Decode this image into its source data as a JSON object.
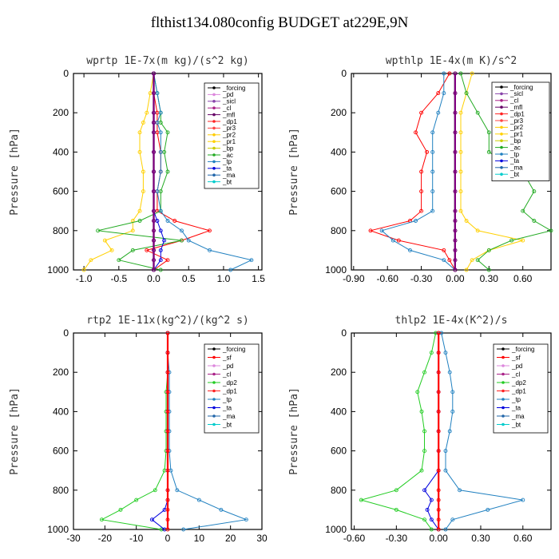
{
  "page": {
    "title": "flthist134.080config  BUDGET at229E,9N"
  },
  "chart_data": [
    {
      "type": "line",
      "title": "wprtp   1E-7x(m kg)/(s^2 kg)",
      "ylabel": "Pressure [hPa]",
      "xlim": [
        -1.15,
        1.55
      ],
      "ylim": [
        1000,
        0
      ],
      "xticks": [
        "-1.0",
        "-0.5",
        "0.0",
        "0.5",
        "1.0",
        "1.5"
      ],
      "xtick_values": [
        -1.0,
        -0.5,
        0.0,
        0.5,
        1.0,
        1.5
      ],
      "yticks": [
        "0",
        "200",
        "400",
        "600",
        "800",
        "1000"
      ],
      "ytick_values": [
        0,
        200,
        400,
        600,
        800,
        1000
      ],
      "legend": [
        "_forcing",
        "_pd",
        "_sicl",
        "_cl",
        "_mfl",
        "_dp1",
        "_pr3",
        "_pr2",
        "_pr1",
        "_bp",
        "_ac",
        "_tp",
        "_ta",
        "_ma",
        "_bt"
      ],
      "legend_position": "top-right",
      "y": [
        0,
        100,
        200,
        250,
        300,
        400,
        500,
        600,
        700,
        750,
        800,
        850,
        900,
        950,
        1000
      ],
      "series": [
        {
          "name": "_forcing",
          "color": "#000000",
          "values": [
            0,
            0,
            0,
            0,
            0,
            0,
            0,
            0,
            0,
            0,
            0,
            0,
            0,
            0,
            0
          ]
        },
        {
          "name": "_cl",
          "color": "#800080",
          "values": [
            0,
            0,
            0,
            0,
            0,
            0,
            0,
            0,
            0,
            0,
            0,
            0,
            0,
            0,
            0
          ]
        },
        {
          "name": "_dp1",
          "color": "#ff0000",
          "values": [
            0,
            0,
            0.05,
            0.05,
            0.05,
            0.1,
            0.1,
            0.05,
            0.05,
            0.3,
            0.8,
            0.4,
            -0.1,
            0.2,
            0
          ]
        },
        {
          "name": "_pr1",
          "color": "#ffd000",
          "values": [
            0,
            -0.05,
            -0.1,
            -0.15,
            -0.2,
            -0.2,
            -0.15,
            -0.15,
            -0.2,
            -0.3,
            -0.3,
            -0.7,
            -0.6,
            -0.9,
            -1.0
          ]
        },
        {
          "name": "_ac",
          "color": "#22aa22",
          "values": [
            0,
            0.05,
            0.1,
            0.1,
            0.2,
            0.15,
            0.2,
            0.1,
            0.1,
            -0.2,
            -0.8,
            0.4,
            -0.3,
            -0.5,
            0.1
          ]
        },
        {
          "name": "_tp",
          "color": "#2080c0",
          "values": [
            0,
            0.05,
            0.1,
            0.05,
            0.1,
            0.1,
            0.1,
            0.05,
            0.1,
            0.2,
            0.4,
            0.5,
            0.8,
            1.4,
            1.1
          ]
        },
        {
          "name": "_ta",
          "color": "#0000dd",
          "values": [
            0,
            0,
            0,
            0,
            0,
            0,
            0,
            0,
            0,
            0.05,
            0.1,
            0.15,
            0.1,
            0.1,
            0
          ]
        }
      ]
    },
    {
      "type": "line",
      "title": "wpthlp   1E-4x(m K)/s^2",
      "ylabel": "Pressure [hPa]",
      "xlim": [
        -0.92,
        0.85
      ],
      "ylim": [
        1000,
        0
      ],
      "xticks": [
        "-0.90",
        "-0.60",
        "-0.30",
        "0.00",
        "0.30",
        "0.60"
      ],
      "xtick_values": [
        -0.9,
        -0.6,
        -0.3,
        0.0,
        0.3,
        0.6
      ],
      "yticks": [
        "0",
        "200",
        "400",
        "600",
        "800",
        "1000"
      ],
      "ytick_values": [
        0,
        200,
        400,
        600,
        800,
        1000
      ],
      "legend": [
        "_forcing",
        "_sicl",
        "_cl",
        "_mfl",
        "_dp1",
        "_pr3",
        "_pr2",
        "_pr1",
        "_bp",
        "_ac",
        "_tp",
        "_ta",
        "_ma",
        "_bt"
      ],
      "legend_position": "top-right",
      "y": [
        0,
        100,
        200,
        300,
        400,
        500,
        600,
        700,
        750,
        800,
        850,
        900,
        950,
        1000
      ],
      "series": [
        {
          "name": "_forcing",
          "color": "#000000",
          "values": [
            0,
            0,
            0,
            0,
            0,
            0,
            0,
            0,
            0,
            0,
            0,
            0,
            0,
            0
          ]
        },
        {
          "name": "_cl",
          "color": "#800080",
          "values": [
            0,
            0,
            0,
            0,
            0,
            0,
            0,
            0,
            0,
            0,
            0,
            0,
            0,
            0
          ]
        },
        {
          "name": "_dp1",
          "color": "#ff0000",
          "values": [
            -0.05,
            -0.15,
            -0.3,
            -0.35,
            -0.25,
            -0.3,
            -0.3,
            -0.3,
            -0.4,
            -0.75,
            -0.5,
            -0.1,
            -0.05,
            0
          ]
        },
        {
          "name": "_pr1",
          "color": "#ffd000",
          "values": [
            0.15,
            0.1,
            0.05,
            0.05,
            0.05,
            0.05,
            0.05,
            0.05,
            0.1,
            0.2,
            0.6,
            0.3,
            0.15,
            0.1
          ]
        },
        {
          "name": "_ac",
          "color": "#22aa22",
          "values": [
            0.05,
            0.1,
            0.2,
            0.3,
            0.3,
            0.6,
            0.7,
            0.6,
            0.7,
            0.85,
            0.5,
            0.3,
            0.2,
            0.3
          ]
        },
        {
          "name": "_tp",
          "color": "#2080c0",
          "values": [
            -0.1,
            -0.1,
            -0.15,
            -0.2,
            -0.2,
            -0.2,
            -0.2,
            -0.2,
            -0.35,
            -0.65,
            -0.55,
            -0.4,
            -0.1,
            0
          ]
        }
      ]
    },
    {
      "type": "line",
      "title": "rtp2   1E-11x(kg^2)/(kg^2 s)",
      "ylabel": "Pressure [hPa]",
      "xlim": [
        -30,
        30
      ],
      "ylim": [
        1000,
        0
      ],
      "xticks": [
        "-30",
        "-20",
        "-10",
        "0",
        "10",
        "20",
        "30"
      ],
      "xtick_values": [
        -30,
        -20,
        -10,
        0,
        10,
        20,
        30
      ],
      "yticks": [
        "0",
        "200",
        "400",
        "600",
        "800",
        "1000"
      ],
      "ytick_values": [
        0,
        200,
        400,
        600,
        800,
        1000
      ],
      "legend": [
        "_forcing",
        "_sf",
        "_pd",
        "_cl",
        "_dp2",
        "_dp1",
        "_tp",
        "_ta",
        "_ma",
        "_bt"
      ],
      "legend_position": "top-right",
      "y": [
        0,
        100,
        200,
        300,
        400,
        500,
        600,
        700,
        800,
        850,
        900,
        950,
        1000
      ],
      "series": [
        {
          "name": "_forcing",
          "color": "#ff0000",
          "values": [
            0,
            0,
            0,
            0,
            0,
            0,
            0,
            0,
            0,
            0,
            0,
            0,
            0
          ]
        },
        {
          "name": "_dp1",
          "color": "#22cc22",
          "values": [
            0,
            0,
            0,
            -0.5,
            -0.5,
            -0.5,
            -0.5,
            -1,
            -4,
            -10,
            -15,
            -21,
            -2
          ]
        },
        {
          "name": "_tp",
          "color": "#2080c0",
          "values": [
            0,
            0,
            0.5,
            0.5,
            0.5,
            0.5,
            0.5,
            1,
            3,
            10,
            17,
            25,
            5
          ]
        },
        {
          "name": "_ta",
          "color": "#0000dd",
          "values": [
            0,
            0,
            0,
            0,
            0,
            0,
            0,
            0,
            0,
            0,
            -1,
            -5,
            -1
          ]
        }
      ]
    },
    {
      "type": "line",
      "title": "thlp2   1E-4x(K^2)/s",
      "ylabel": "Pressure [hPa]",
      "xlim": [
        -0.62,
        0.8
      ],
      "ylim": [
        1000,
        0
      ],
      "xticks": [
        "-0.60",
        "-0.30",
        "0.00",
        "0.30",
        "0.60"
      ],
      "xtick_values": [
        -0.6,
        -0.3,
        0.0,
        0.3,
        0.6
      ],
      "yticks": [
        "0",
        "200",
        "400",
        "600",
        "800",
        "1000"
      ],
      "ytick_values": [
        0,
        200,
        400,
        600,
        800,
        1000
      ],
      "legend": [
        "_forcing",
        "_sf",
        "_pd",
        "_cl",
        "_dp2",
        "_dp1",
        "_tp",
        "_ta",
        "_ma",
        "_bt"
      ],
      "legend_position": "top-right",
      "y": [
        0,
        100,
        200,
        300,
        400,
        500,
        600,
        700,
        800,
        850,
        900,
        950,
        1000
      ],
      "series": [
        {
          "name": "_forcing",
          "color": "#ff0000",
          "values": [
            0,
            0,
            0,
            0,
            0,
            0,
            0,
            0,
            0,
            0,
            0,
            0,
            0
          ]
        },
        {
          "name": "_dp1",
          "color": "#22cc22",
          "values": [
            -0.02,
            -0.05,
            -0.1,
            -0.15,
            -0.12,
            -0.1,
            -0.1,
            -0.12,
            -0.3,
            -0.55,
            -0.3,
            -0.1,
            -0.05
          ]
        },
        {
          "name": "_tp",
          "color": "#2080c0",
          "values": [
            0.02,
            0.05,
            0.08,
            0.1,
            0.1,
            0.08,
            0.05,
            0.05,
            0.15,
            0.6,
            0.35,
            0.1,
            0.05
          ]
        },
        {
          "name": "_ta",
          "color": "#0000dd",
          "values": [
            0,
            0,
            0,
            0,
            0,
            0,
            0,
            0,
            -0.1,
            -0.05,
            -0.08,
            -0.05,
            0
          ]
        }
      ]
    }
  ]
}
